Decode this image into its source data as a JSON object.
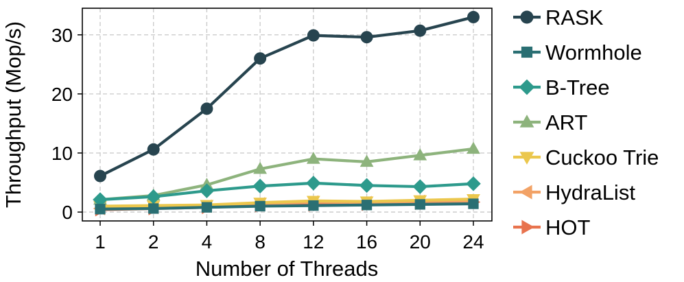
{
  "chart_data": {
    "type": "line",
    "xlabel": "Number of Threads",
    "ylabel": "Throughput (Mop/s)",
    "categories": [
      "1",
      "2",
      "4",
      "8",
      "12",
      "16",
      "20",
      "24"
    ],
    "yticks": [
      0,
      10,
      20,
      30
    ],
    "ylim": [
      -1.5,
      34.5
    ],
    "grid": true,
    "legend_position": "right",
    "series": [
      {
        "name": "RASK",
        "color": "#27444f",
        "marker": "circle",
        "values": [
          6.1,
          10.6,
          17.5,
          26.0,
          29.9,
          29.6,
          30.7,
          33.0
        ]
      },
      {
        "name": "Wormhole",
        "color": "#2a6f73",
        "marker": "square",
        "values": [
          0.5,
          0.6,
          0.8,
          1.0,
          1.1,
          1.2,
          1.3,
          1.4
        ]
      },
      {
        "name": "B-Tree",
        "color": "#2d9a8c",
        "marker": "diamond",
        "values": [
          2.1,
          2.6,
          3.6,
          4.4,
          4.9,
          4.5,
          4.3,
          4.8
        ]
      },
      {
        "name": "ART",
        "color": "#8db37c",
        "marker": "triangle-up",
        "values": [
          2.1,
          2.8,
          4.6,
          7.3,
          9.0,
          8.5,
          9.6,
          10.7
        ]
      },
      {
        "name": "Cuckoo Trie",
        "color": "#ebc74d",
        "marker": "triangle-down",
        "values": [
          1.0,
          1.1,
          1.2,
          1.6,
          1.9,
          1.8,
          2.0,
          2.2
        ]
      },
      {
        "name": "HydraList",
        "color": "#f2a266",
        "marker": "triangle-left",
        "values": [
          0.6,
          0.8,
          1.0,
          1.4,
          1.7,
          1.6,
          1.8,
          1.9
        ]
      },
      {
        "name": "HOT",
        "color": "#e8734e",
        "marker": "triangle-right",
        "values": [
          0.4,
          0.6,
          0.8,
          1.1,
          1.2,
          1.3,
          1.5,
          1.7
        ]
      }
    ]
  }
}
